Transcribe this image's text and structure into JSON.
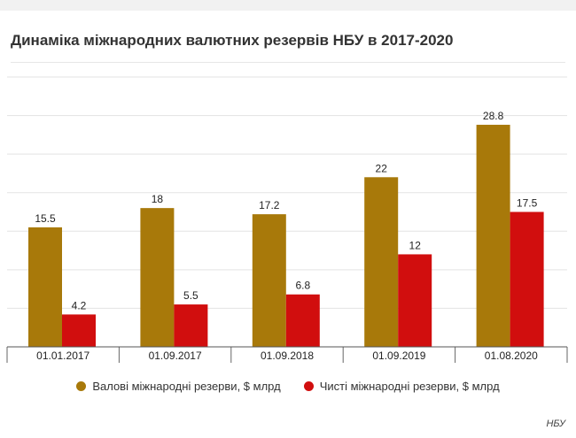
{
  "title": "Динаміка міжнародних валютних резервів НБУ в 2017-2020",
  "source": "НБУ",
  "chart_data": {
    "type": "bar",
    "categories": [
      "01.01.2017",
      "01.09.2017",
      "01.09.2018",
      "01.09.2019",
      "01.08.2020"
    ],
    "series": [
      {
        "name": "Валові міжнародні резерви, $ млрд",
        "color": "#a8790a",
        "values": [
          15.5,
          18,
          17.2,
          22,
          28.8
        ]
      },
      {
        "name": "Чисті міжнародні резерви, $ млрд",
        "color": "#d10e0e",
        "values": [
          4.2,
          5.5,
          6.8,
          12,
          17.5
        ]
      }
    ],
    "ylim": [
      0,
      35
    ],
    "grid": true,
    "legend": "bottom"
  }
}
